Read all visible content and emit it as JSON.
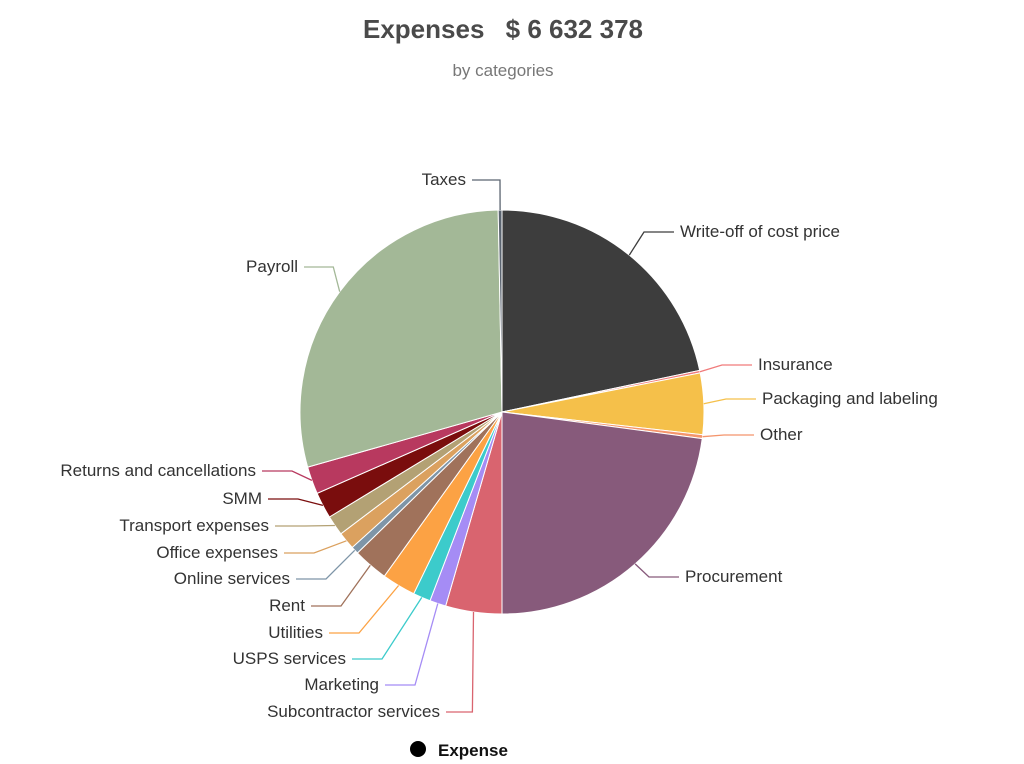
{
  "header": {
    "title_prefix": "Expenses",
    "title_amount": "$  6 632 378",
    "subtitle": "by categories"
  },
  "legend": {
    "series_name": "Expense"
  },
  "chart_data": {
    "type": "pie",
    "title": "Expenses  $  6 632 378",
    "subtitle": "by categories",
    "total": 6632378,
    "legend_position": "bottom",
    "series": [
      {
        "name": "Expense",
        "slices": [
          {
            "label": "Write-off of cost price",
            "value": 21.7,
            "color": "#3d3d3d"
          },
          {
            "label": "Insurance",
            "value": 0.2,
            "color": "#f07b7b"
          },
          {
            "label": "Packaging and labeling",
            "value": 4.9,
            "color": "#f5c04a"
          },
          {
            "label": "Other",
            "value": 0.3,
            "color": "#f4956c"
          },
          {
            "label": "Procurement",
            "value": 22.9,
            "color": "#875a7b"
          },
          {
            "label": "Subcontractor services",
            "value": 4.5,
            "color": "#d9646f"
          },
          {
            "label": "Marketing",
            "value": 1.3,
            "color": "#a58cf5"
          },
          {
            "label": "USPS services",
            "value": 1.4,
            "color": "#3ccbcb"
          },
          {
            "label": "Utilities",
            "value": 2.7,
            "color": "#fca244"
          },
          {
            "label": "Rent",
            "value": 2.8,
            "color": "#a0725b"
          },
          {
            "label": "Online services",
            "value": 0.6,
            "color": "#7e95a8"
          },
          {
            "label": "Office expenses",
            "value": 1.4,
            "color": "#dba15f"
          },
          {
            "label": "Transport expenses",
            "value": 1.6,
            "color": "#b3a174"
          },
          {
            "label": "SMM",
            "value": 2.1,
            "color": "#7a0d0d"
          },
          {
            "label": "Returns and cancellations",
            "value": 2.2,
            "color": "#b8395f"
          },
          {
            "label": "Payroll",
            "value": 29.1,
            "color": "#a3b897"
          },
          {
            "label": "Taxes",
            "value": 0.3,
            "color": "#5b6470"
          }
        ]
      }
    ]
  }
}
